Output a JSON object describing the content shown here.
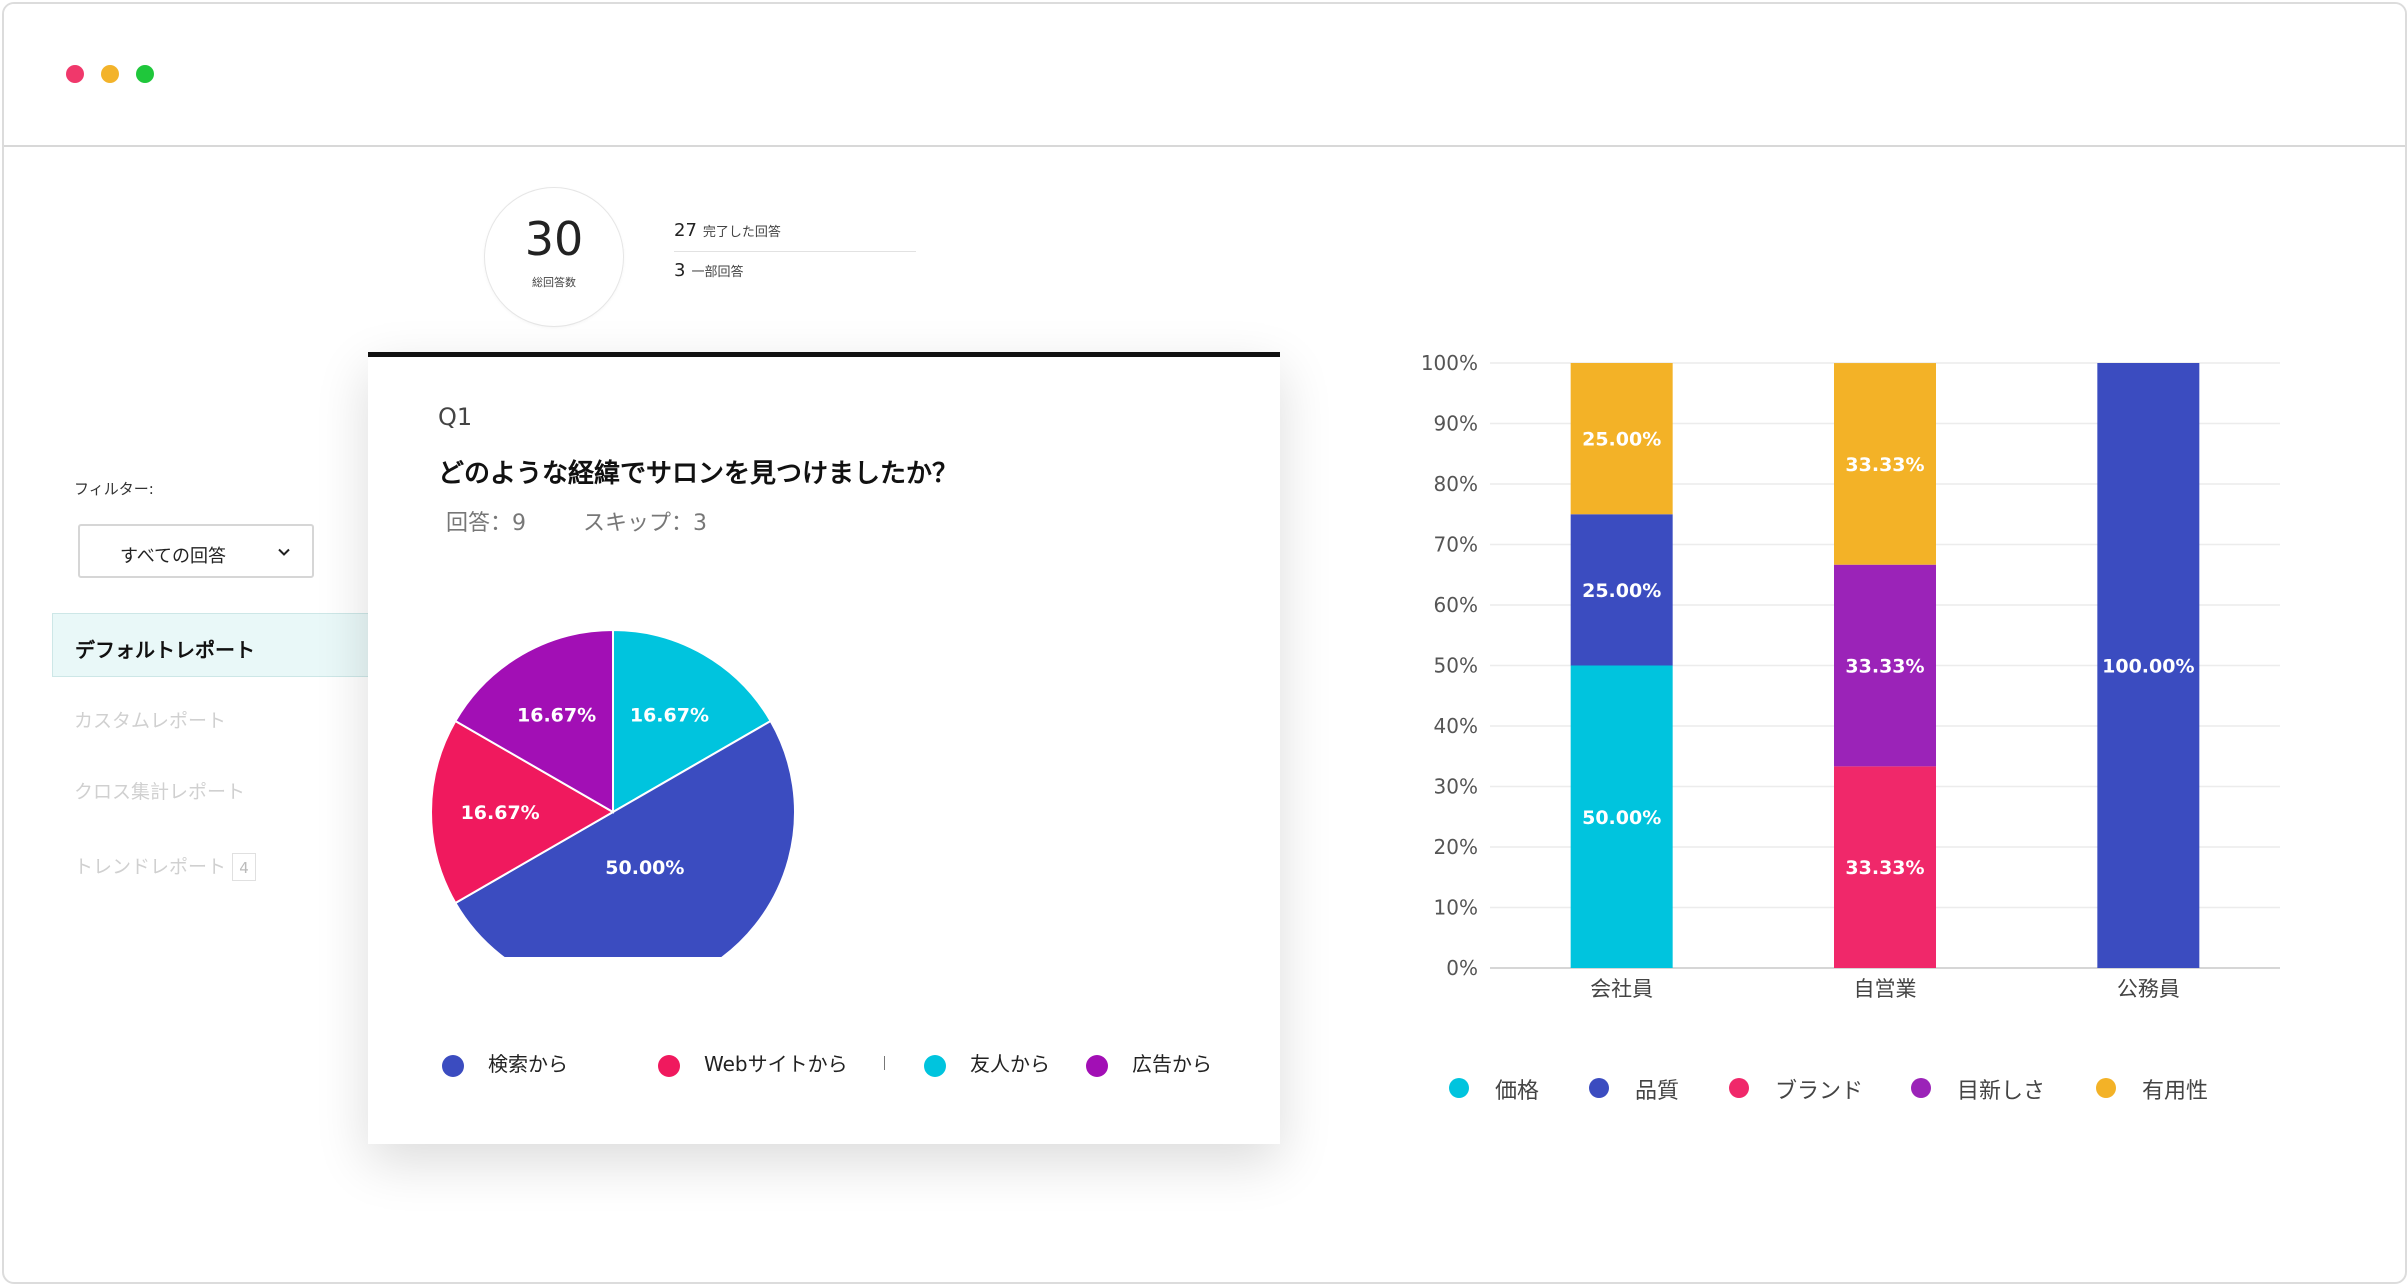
{
  "window": {
    "controls": [
      "close",
      "minimize",
      "maximize"
    ]
  },
  "summary": {
    "total": "30",
    "total_label": "総回答数",
    "completed_count": "27",
    "completed_label": "完了した回答",
    "partial_count": "3",
    "partial_label": "一部回答"
  },
  "sidebar": {
    "filter_label": "フィルター:",
    "filter_value": "すべての回答",
    "items": [
      {
        "label": "デフォルトレポート",
        "active": true
      },
      {
        "label": "カスタムレポート"
      },
      {
        "label": "クロス集計レポート"
      },
      {
        "label": "トレンドレポート",
        "badge": "4"
      }
    ]
  },
  "question": {
    "number": "Q1",
    "title": "どのような経緯でサロンを見つけましたか？",
    "responses": "回答：9",
    "skips": "スキップ：3"
  },
  "chart_data": [
    {
      "type": "pie",
      "categories": [
        "検索から",
        "Webサイトから",
        "友人から",
        "広告から"
      ],
      "values": [
        50.0,
        16.67,
        16.67,
        16.67
      ],
      "labels": [
        "50.00%",
        "16.67%",
        "16.67%",
        "16.67%"
      ],
      "colors": [
        "#3b4cc0",
        "#f0195e",
        "#00c4de",
        "#a20fb5"
      ]
    },
    {
      "type": "bar",
      "stacked": true,
      "categories": [
        "会社員",
        "自営業",
        "公務員"
      ],
      "series": [
        {
          "name": "価格",
          "color": "#00c4de",
          "values": [
            50.0,
            0,
            0
          ],
          "labels": [
            "50.00%",
            "",
            ""
          ]
        },
        {
          "name": "品質",
          "color": "#3b4cc0",
          "values": [
            25.0,
            0,
            100.0
          ],
          "labels": [
            "25.00%",
            "",
            "100.00%"
          ]
        },
        {
          "name": "ブランド",
          "color": "#f0286a",
          "values": [
            0,
            33.33,
            0
          ],
          "labels": [
            "",
            "33.33%",
            ""
          ]
        },
        {
          "name": "目新しさ",
          "color": "#9b23b8",
          "values": [
            0,
            33.33,
            0
          ],
          "labels": [
            "",
            "33.33%",
            ""
          ]
        },
        {
          "name": "有用性",
          "color": "#f3b227",
          "values": [
            25.0,
            33.33,
            0
          ],
          "labels": [
            "25.00%",
            "33.33%",
            ""
          ]
        }
      ],
      "yticks": [
        "0%",
        "10%",
        "20%",
        "30%",
        "40%",
        "50%",
        "60%",
        "70%",
        "80%",
        "90%",
        "100%"
      ],
      "ylim": [
        0,
        100
      ],
      "grid": true,
      "legend_position": "bottom"
    }
  ]
}
